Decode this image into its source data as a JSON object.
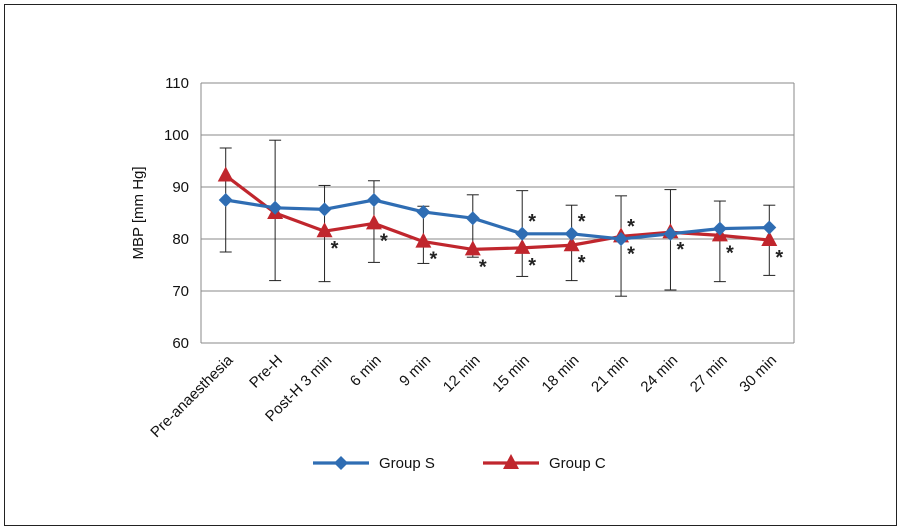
{
  "chart_data": {
    "type": "line",
    "categories": [
      "Pre-anaesthesia",
      "Pre-H",
      "Post-H 3 min",
      "6 min",
      "9 min",
      "12 min",
      "15 min",
      "18 min",
      "21 min",
      "24 min",
      "27 min",
      "30 min"
    ],
    "ylabel": "MBP [mm Hg]",
    "xlabel": "",
    "ylim": [
      60,
      110
    ],
    "yticks": [
      60,
      70,
      80,
      90,
      100,
      110
    ],
    "grid": "horizontal",
    "legend_position": "bottom",
    "significance_marker": "*",
    "series": [
      {
        "name": "Group S",
        "color": "#2f6db3",
        "marker": "diamond",
        "values": [
          87.5,
          86,
          85.7,
          87.5,
          85.2,
          84,
          81,
          81,
          80,
          81,
          82,
          82.2
        ],
        "error_low": [
          77.5,
          72,
          71.8,
          75.5,
          75.3,
          76.5,
          72.8,
          72,
          69,
          70.2,
          71.8,
          73
        ],
        "error_high": [
          97.5,
          99,
          90.3,
          91.2,
          86.3,
          88.5,
          89.3,
          86.5,
          88.3,
          89.5,
          87.3,
          86.5
        ]
      },
      {
        "name": "Group C",
        "color": "#c0262d",
        "marker": "triangle",
        "values": [
          92.2,
          85,
          81.5,
          83,
          79.5,
          78,
          78.3,
          78.8,
          80.5,
          81.3,
          80.7,
          79.8
        ],
        "significant": [
          false,
          false,
          true,
          true,
          true,
          true,
          true,
          true,
          true,
          true,
          true,
          true
        ],
        "significant_upper": [
          false,
          false,
          false,
          false,
          false,
          false,
          true,
          true,
          true,
          false,
          false,
          false
        ]
      }
    ]
  }
}
